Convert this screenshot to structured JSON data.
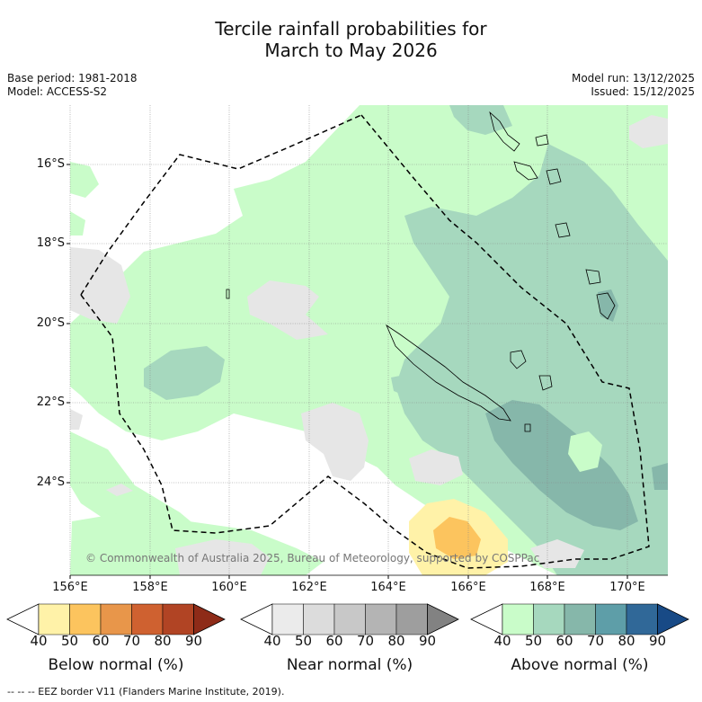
{
  "title_line1": "Tercile rainfall probabilities for",
  "title_line2": "March to May 2026",
  "base_period": "Base period: 1981-2018",
  "model": "Model: ACCESS-S2",
  "model_run": "Model run: 13/12/2025",
  "issued": "Issued: 15/12/2025",
  "copyright": "© Commonwealth of Australia 2025, Bureau of Meteorology, supported by COSPPac",
  "eez_note": "--  --  -- EEZ border V11 (Flanders Marine Institute, 2019).",
  "lat_labels": [
    "16°S",
    "18°S",
    "20°S",
    "22°S",
    "24°S"
  ],
  "lon_labels": [
    "156°E",
    "158°E",
    "160°E",
    "162°E",
    "164°E",
    "166°E",
    "168°E",
    "170°E"
  ],
  "colorbar_ticks": [
    "40",
    "50",
    "60",
    "70",
    "80",
    "90"
  ],
  "colorbars": [
    {
      "title": "Below normal (%)",
      "colors": [
        "#fff2a8",
        "#fcc45e",
        "#e8964a",
        "#cf6130",
        "#b14424",
        "#8e2b18"
      ]
    },
    {
      "title": "Near normal (%)",
      "colors": [
        "#ebebeb",
        "#dcdcdc",
        "#c8c8c8",
        "#b4b4b4",
        "#9e9e9e",
        "#828282"
      ]
    },
    {
      "title": "Above normal (%)",
      "colors": [
        "#c9fcc9",
        "#a6d8be",
        "#86b7aa",
        "#5e9ea8",
        "#306898",
        "#184a86"
      ]
    }
  ]
}
